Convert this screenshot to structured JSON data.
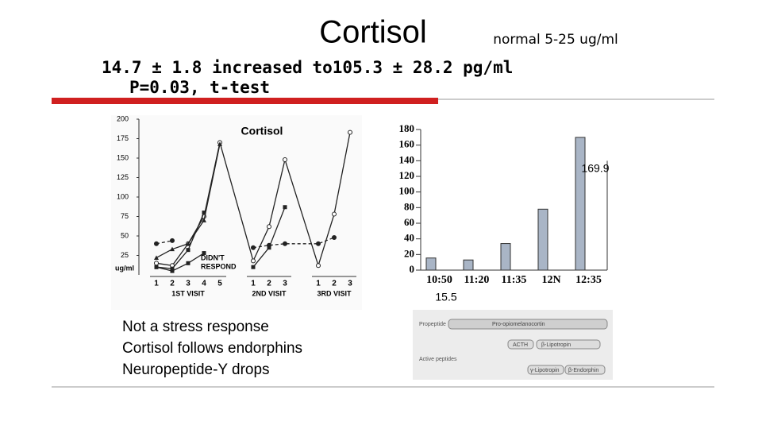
{
  "title": "Cortisol",
  "normal": "normal 5-25 ug/ml",
  "result": "14.7 ± 1.8 increased to105.3 ± 28.2 pg/ml",
  "stats": "P=0.03, t-test",
  "notes": [
    "Not a stress response",
    "Cortisol follows endorphins",
    "Neuropeptide-Y drops"
  ],
  "chart_data": [
    {
      "type": "line",
      "title": "Cortisol",
      "y_label": "ug/ml",
      "categories": [
        "1",
        "2",
        "3",
        "4",
        "5",
        "1",
        "2",
        "3",
        "1",
        "2",
        "3"
      ],
      "group_labels": [
        "1ST VISIT",
        "2ND VISIT",
        "3RD VISIT"
      ],
      "annotation": [
        "DIDN'T",
        "RESPOND"
      ],
      "ylim": [
        0,
        200
      ],
      "yticks": [
        25,
        50,
        75,
        100,
        125,
        150,
        175,
        200
      ],
      "series": [
        {
          "color": "#222222",
          "marker": "circle-open",
          "values": [
            15,
            12,
            40,
            75,
            170,
            18,
            62,
            148,
            12,
            78,
            183
          ]
        },
        {
          "color": "#222222",
          "marker": "square",
          "values": [
            10,
            8,
            32,
            80,
            null,
            10,
            35,
            87,
            null,
            null,
            null
          ]
        },
        {
          "color": "#222222",
          "marker": "triangle",
          "values": [
            22,
            33,
            40,
            70,
            168,
            null,
            null,
            null,
            null,
            null,
            null
          ]
        },
        {
          "color": "#222222",
          "marker": "circle",
          "dash": true,
          "values": [
            40,
            44,
            null,
            null,
            null,
            35,
            38,
            40,
            40,
            48,
            null
          ]
        },
        {
          "color": "#222222",
          "marker": "square",
          "values": [
            10,
            5,
            15,
            28,
            null,
            null,
            null,
            null,
            null,
            null,
            null
          ]
        }
      ]
    },
    {
      "type": "bar",
      "categories": [
        "10:50",
        "11:20",
        "11:35",
        "12N",
        "12:35"
      ],
      "values": [
        15.5,
        13,
        34,
        78,
        169.9
      ],
      "value_labels": [
        "15.5",
        null,
        null,
        null,
        "169.9"
      ],
      "ylim": [
        0,
        180
      ],
      "yticks": [
        0,
        20,
        40,
        60,
        80,
        100,
        120,
        140,
        160,
        180
      ],
      "color": "#a9b5c6"
    }
  ],
  "diagram": {
    "rows": [
      "Propeptide",
      "Active peptides"
    ],
    "nodes": [
      "Pro-opiomelanocortin",
      "ACTH",
      "β-Lipotropin",
      "γ-Lipotropin",
      "β-Endorphin"
    ]
  }
}
